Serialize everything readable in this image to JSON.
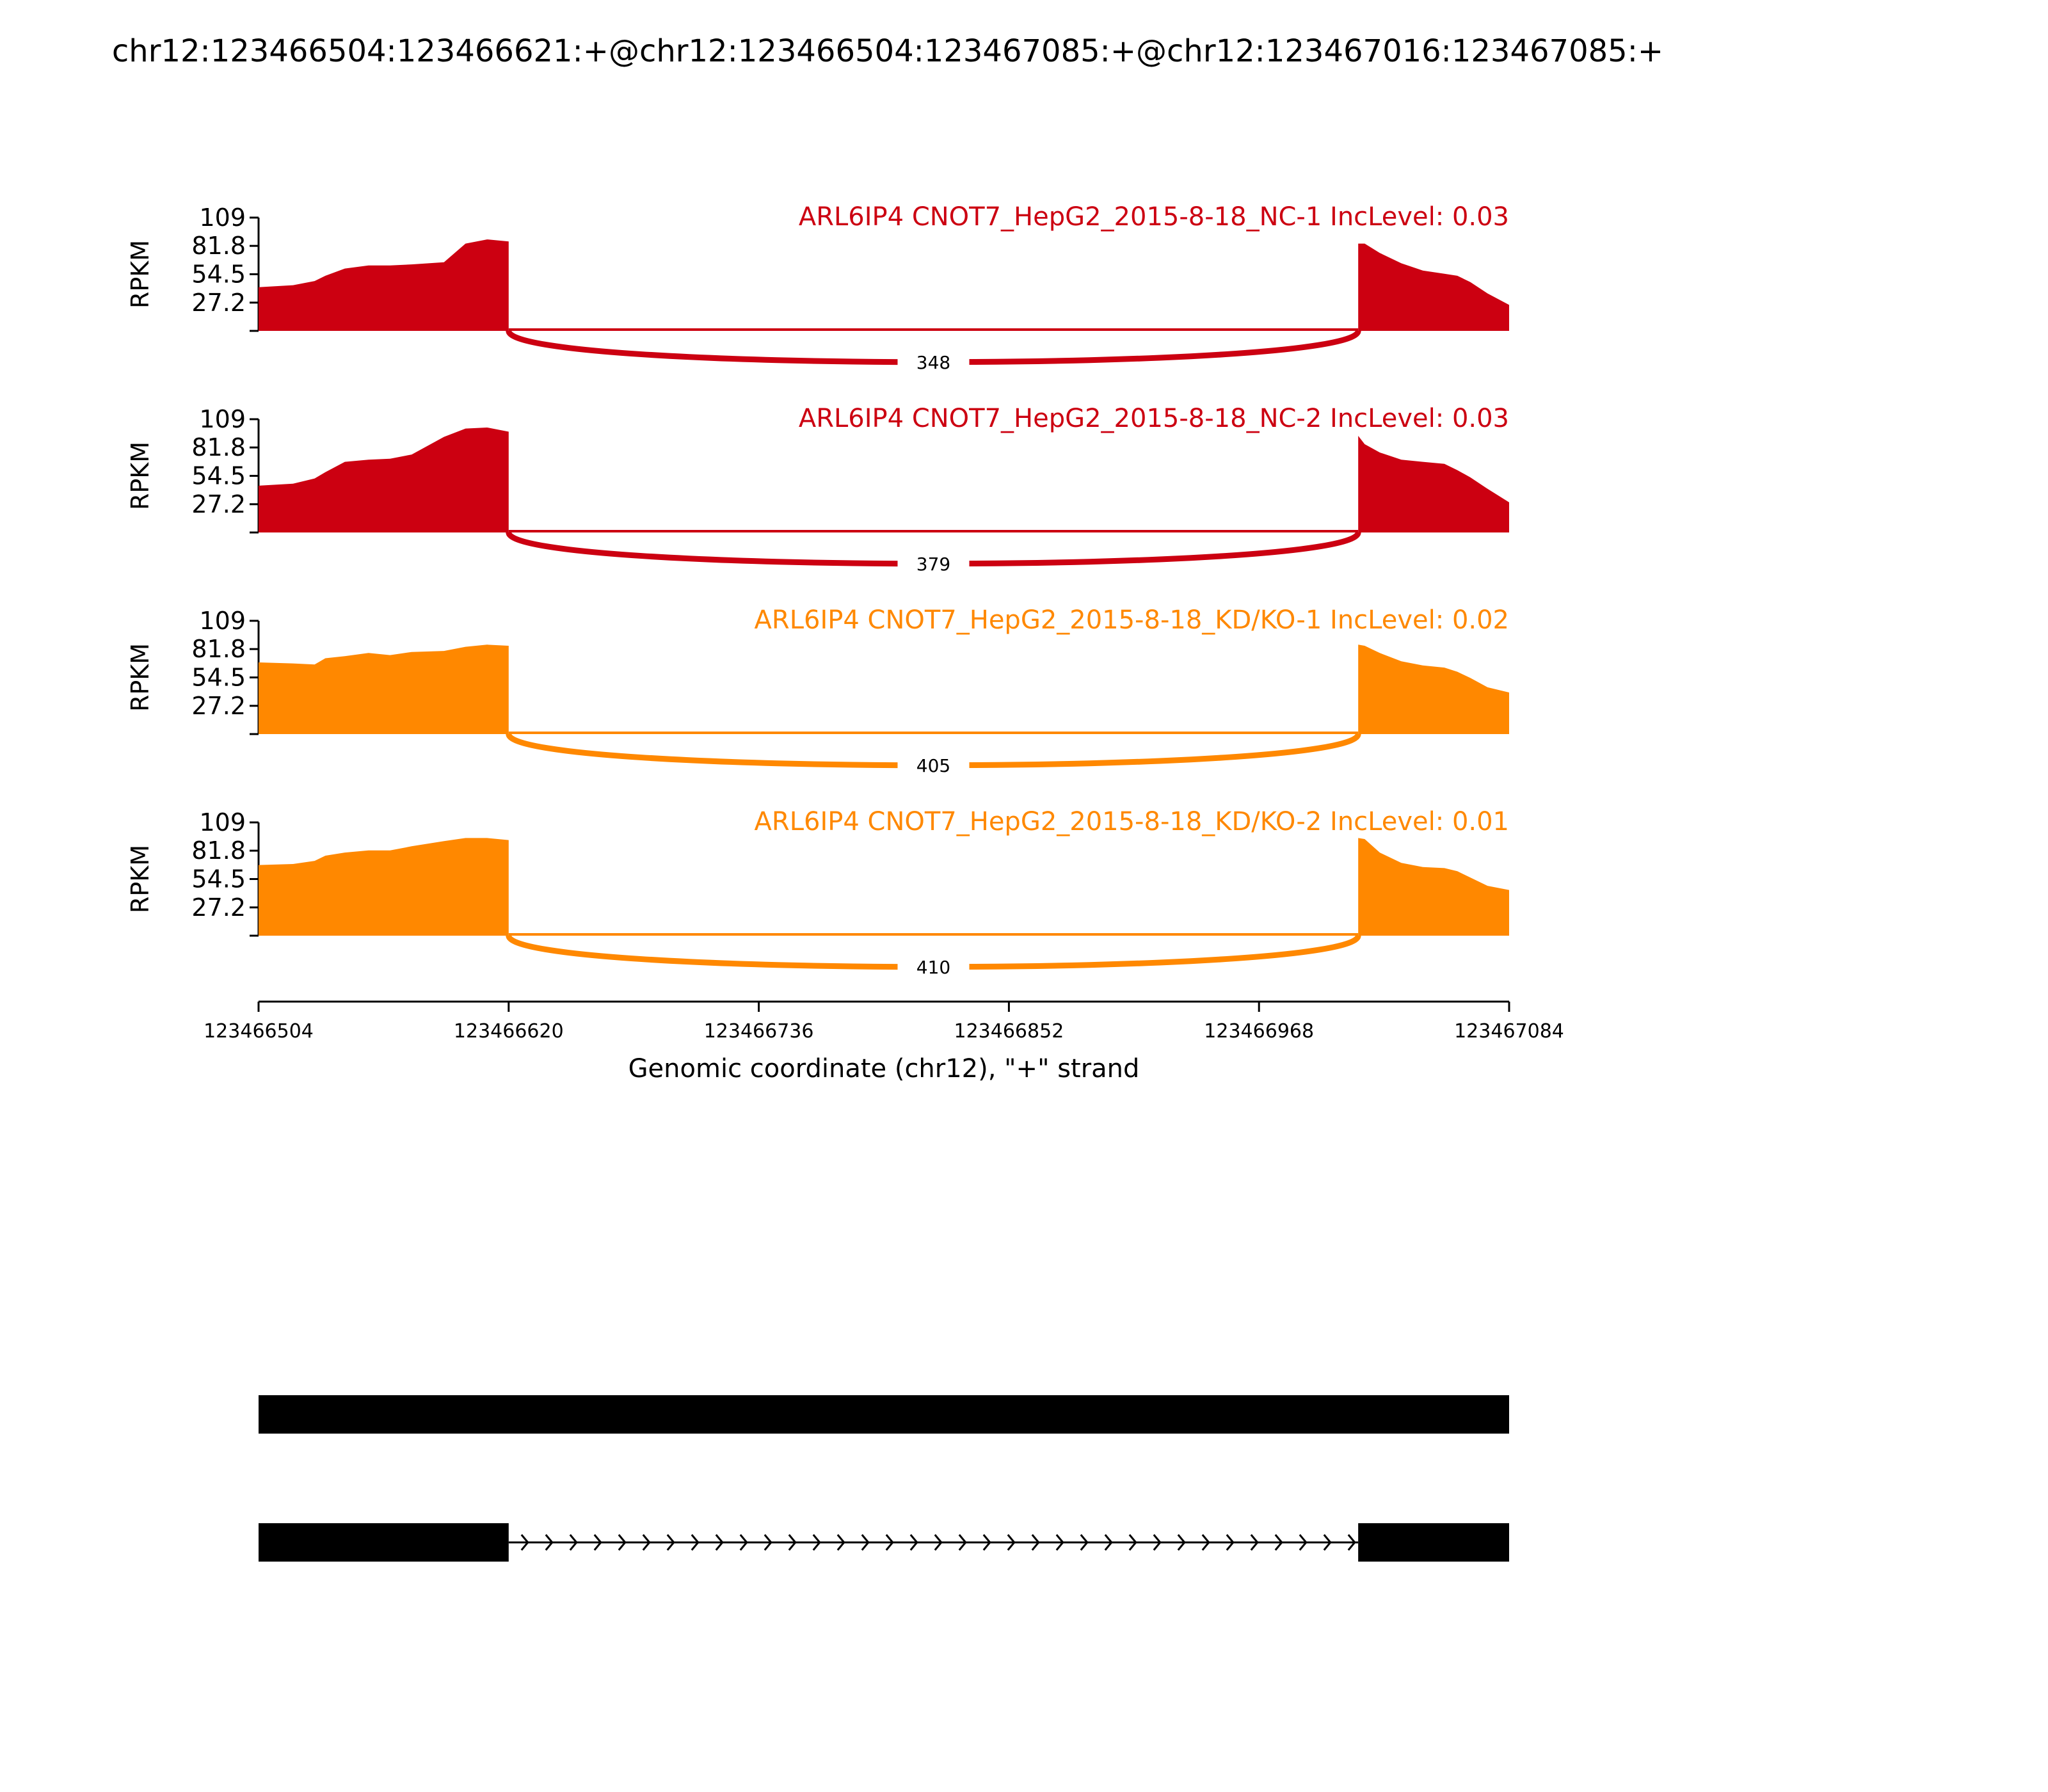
{
  "title": "chr12:123466504:123466621:+@chr12:123466504:123467085:+@chr12:123467016:123467085:+",
  "chart_data": {
    "type": "area",
    "title": "chr12:123466504:123466621:+@chr12:123466504:123467085:+@chr12:123467016:123467085:+",
    "ylabel": "RPKM",
    "xlabel": "Genomic coordinate (chr12), \"+\" strand",
    "xlim": [
      123466504,
      123467084
    ],
    "x_ticks": [
      "123466504",
      "123466620",
      "123466736",
      "123466852",
      "123466968",
      "123467084"
    ],
    "ylim": [
      0,
      109
    ],
    "y_ticks": [
      "27.2",
      "54.5",
      "81.8",
      "109"
    ],
    "exons": [
      {
        "start": 123466504,
        "end": 123466620
      },
      {
        "start": 123467014,
        "end": 123467084
      }
    ],
    "coverage_x": [
      123466504,
      123466520,
      123466530,
      123466535,
      123466544,
      123466555,
      123466565,
      123466575,
      123466590,
      123466600,
      123466610,
      123466620,
      123467014,
      123467017,
      123467024,
      123467034,
      123467044,
      123467054,
      123467060,
      123467066,
      123467074,
      123467084
    ],
    "series": [
      {
        "name": "ARL6IP4 CNOT7_HepG2_2015-8-18_NC-1",
        "label": "ARL6IP4 CNOT7_HepG2_2015-8-18_NC-1 IncLevel: 0.03",
        "color": "#cc0011",
        "junction_reads": "348",
        "coverage": [
          42,
          44,
          48,
          53,
          60,
          63,
          63,
          64,
          66,
          84,
          88,
          86,
          84,
          84,
          75,
          65,
          58,
          55,
          53,
          47,
          36,
          25
        ]
      },
      {
        "name": "ARL6IP4 CNOT7_HepG2_2015-8-18_NC-2",
        "label": "ARL6IP4 CNOT7_HepG2_2015-8-18_NC-2 IncLevel: 0.03",
        "color": "#cc0011",
        "junction_reads": "379",
        "coverage": [
          45,
          47,
          52,
          58,
          68,
          70,
          71,
          75,
          92,
          100,
          101,
          97,
          93,
          85,
          77,
          70,
          68,
          66,
          60,
          53,
          42,
          29
        ]
      },
      {
        "name": "ARL6IP4 CNOT7_HepG2_2015-8-18_KD/KO-1",
        "label": "ARL6IP4 CNOT7_HepG2_2015-8-18_KD/KO-1 IncLevel: 0.02",
        "color": "#ff8800",
        "junction_reads": "405",
        "coverage": [
          69,
          68,
          67,
          73,
          75,
          78,
          76,
          79,
          80,
          84,
          86,
          85,
          86,
          85,
          78,
          70,
          66,
          64,
          60,
          54,
          45,
          40
        ]
      },
      {
        "name": "ARL6IP4 CNOT7_HepG2_2015-8-18_KD/KO-2",
        "label": "ARL6IP4 CNOT7_HepG2_2015-8-18_KD/KO-2 IncLevel: 0.01",
        "color": "#ff8800",
        "junction_reads": "410",
        "coverage": [
          68,
          69,
          72,
          77,
          80,
          82,
          82,
          86,
          91,
          94,
          94,
          92,
          94,
          93,
          80,
          70,
          66,
          65,
          62,
          56,
          48,
          44
        ]
      }
    ],
    "isoforms": [
      {
        "exons": [
          [
            123466504,
            123467084
          ]
        ]
      },
      {
        "exons": [
          [
            123466504,
            123466620
          ],
          [
            123467014,
            123467084
          ]
        ],
        "strand": "+"
      }
    ]
  }
}
